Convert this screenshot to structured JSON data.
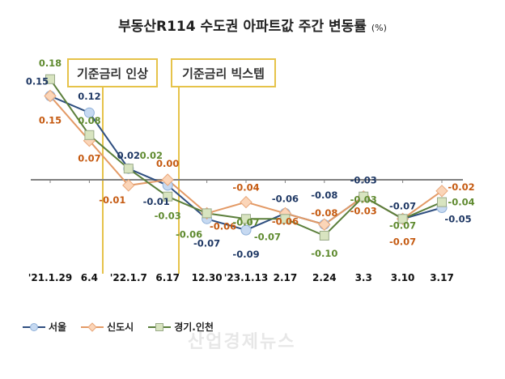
{
  "chart_data": {
    "type": "line",
    "title": "부동산R114 수도권 아파트값 주간 변동률",
    "unit": "(%)",
    "categories": [
      "'21.1.29",
      "6.4",
      "'22.1.7",
      "6.17",
      "12.30",
      "'23.1.13",
      "2.17",
      "2.24",
      "3.3",
      "3.10",
      "3.17"
    ],
    "series": [
      {
        "name": "서울",
        "marker": "circle",
        "color": "#2f4f80",
        "marker_fill": "#c6d9f1",
        "label_color": "#1f3864",
        "values": [
          0.15,
          0.12,
          0.02,
          -0.01,
          -0.07,
          -0.09,
          -0.06,
          -0.08,
          -0.03,
          -0.07,
          -0.05
        ]
      },
      {
        "name": "신도시",
        "marker": "diamond",
        "color": "#e39a66",
        "marker_fill": "#fbd5b8",
        "label_color": "#c55a11",
        "values": [
          0.15,
          0.07,
          -0.01,
          0.0,
          -0.06,
          -0.04,
          -0.06,
          -0.08,
          -0.03,
          -0.07,
          -0.02
        ]
      },
      {
        "name": "경기.인천",
        "marker": "square",
        "color": "#5b7f3b",
        "marker_fill": "#d8e4c0",
        "label_color": "#5f8a2f",
        "values": [
          0.18,
          0.08,
          0.02,
          -0.03,
          -0.06,
          -0.07,
          -0.07,
          -0.1,
          -0.03,
          -0.07,
          -0.04
        ]
      }
    ],
    "annotations": [
      {
        "text": "기준금리 인상",
        "after_category": "6.4"
      },
      {
        "text": "기준금리 빅스텝",
        "after_category": "6.17"
      }
    ],
    "legend": "bottom-left",
    "grid": false
  },
  "watermark": "산업경제뉴스"
}
